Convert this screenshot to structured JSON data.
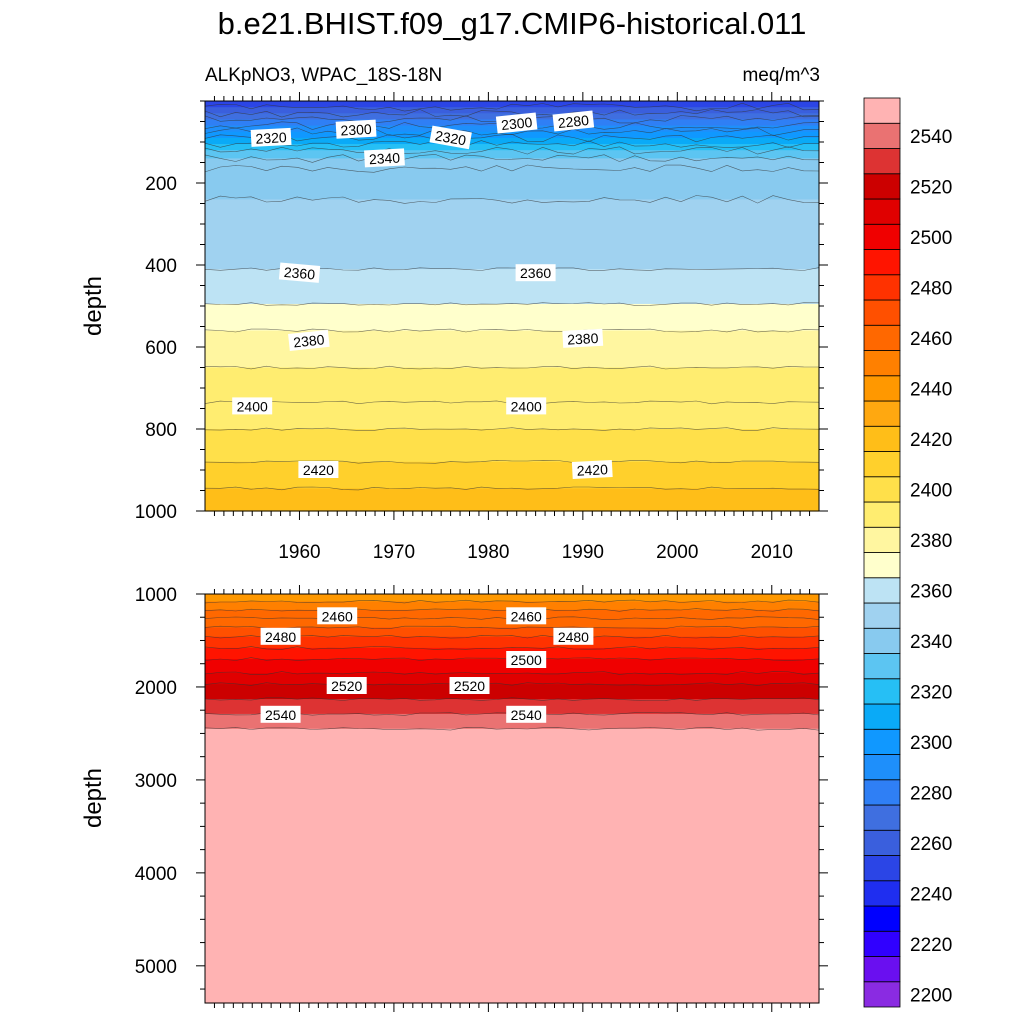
{
  "chart_data": {
    "type": "heatmap",
    "title": "b.e21.BHIST.f09_g17.CMIP6-historical.011",
    "subtitle_left": "ALKpNO3, WPAC_18S-18N",
    "subtitle_right": "meq/m^3",
    "ylabel": "depth",
    "xlim": [
      1950,
      2015
    ],
    "x_ticks": [
      "1960",
      "1970",
      "1980",
      "1990",
      "2000",
      "2010"
    ],
    "x_tick_values": [
      1960,
      1970,
      1980,
      1990,
      2000,
      2010
    ],
    "panels": [
      {
        "name": "upper",
        "ylim": [
          0,
          1000
        ],
        "y_ticks": [
          "200",
          "400",
          "600",
          "800",
          "1000"
        ],
        "y_tick_values": [
          200,
          400,
          600,
          800,
          1000
        ],
        "bands": [
          {
            "top": 0,
            "bottom": 15,
            "level": 2250
          },
          {
            "top": 15,
            "bottom": 30,
            "level": 2260
          },
          {
            "top": 30,
            "bottom": 45,
            "level": 2270
          },
          {
            "top": 45,
            "bottom": 60,
            "level": 2280
          },
          {
            "top": 60,
            "bottom": 75,
            "level": 2290
          },
          {
            "top": 75,
            "bottom": 90,
            "level": 2300
          },
          {
            "top": 90,
            "bottom": 105,
            "level": 2310
          },
          {
            "top": 105,
            "bottom": 120,
            "level": 2320
          },
          {
            "top": 120,
            "bottom": 140,
            "level": 2330
          },
          {
            "top": 140,
            "bottom": 165,
            "level": 2340
          },
          {
            "top": 165,
            "bottom": 240,
            "level": 2345
          },
          {
            "top": 240,
            "bottom": 410,
            "level": 2355
          },
          {
            "top": 410,
            "bottom": 495,
            "level": 2365
          },
          {
            "top": 495,
            "bottom": 560,
            "level": 2375
          },
          {
            "top": 560,
            "bottom": 650,
            "level": 2385
          },
          {
            "top": 650,
            "bottom": 735,
            "level": 2390
          },
          {
            "top": 735,
            "bottom": 800,
            "level": 2395
          },
          {
            "top": 800,
            "bottom": 880,
            "level": 2405
          },
          {
            "top": 880,
            "bottom": 945,
            "level": 2415
          },
          {
            "top": 945,
            "bottom": 1000,
            "level": 2425
          }
        ],
        "contour_labels": [
          {
            "text": "2320",
            "year": 1957,
            "depth": 90,
            "angle": -3
          },
          {
            "text": "2300",
            "year": 1966,
            "depth": 70,
            "angle": -3
          },
          {
            "text": "2340",
            "year": 1969,
            "depth": 140,
            "angle": -3
          },
          {
            "text": "2320",
            "year": 1976,
            "depth": 90,
            "angle": 10
          },
          {
            "text": "2300",
            "year": 1983,
            "depth": 55,
            "angle": -6
          },
          {
            "text": "2280",
            "year": 1989,
            "depth": 50,
            "angle": -6
          },
          {
            "text": "2360",
            "year": 1960,
            "depth": 420,
            "angle": 5
          },
          {
            "text": "2360",
            "year": 1985,
            "depth": 420,
            "angle": 0
          },
          {
            "text": "2380",
            "year": 1961,
            "depth": 585,
            "angle": -6
          },
          {
            "text": "2380",
            "year": 1990,
            "depth": 580,
            "angle": -3
          },
          {
            "text": "2400",
            "year": 1955,
            "depth": 745,
            "angle": 0
          },
          {
            "text": "2400",
            "year": 1984,
            "depth": 745,
            "angle": 0
          },
          {
            "text": "2420",
            "year": 1962,
            "depth": 900,
            "angle": 0
          },
          {
            "text": "2420",
            "year": 1991,
            "depth": 900,
            "angle": -3
          }
        ]
      },
      {
        "name": "lower",
        "ylim": [
          1000,
          5400
        ],
        "y_ticks": [
          "1000",
          "2000",
          "3000",
          "4000",
          "5000"
        ],
        "y_tick_values": [
          1000,
          2000,
          3000,
          4000,
          5000
        ],
        "bands": [
          {
            "top": 1000,
            "bottom": 1080,
            "level": 2445
          },
          {
            "top": 1080,
            "bottom": 1170,
            "level": 2455
          },
          {
            "top": 1170,
            "bottom": 1260,
            "level": 2460
          },
          {
            "top": 1260,
            "bottom": 1360,
            "level": 2465
          },
          {
            "top": 1360,
            "bottom": 1460,
            "level": 2475
          },
          {
            "top": 1460,
            "bottom": 1580,
            "level": 2485
          },
          {
            "top": 1580,
            "bottom": 1700,
            "level": 2495
          },
          {
            "top": 1700,
            "bottom": 1850,
            "level": 2505
          },
          {
            "top": 1850,
            "bottom": 1970,
            "level": 2515
          },
          {
            "top": 1970,
            "bottom": 2130,
            "level": 2525
          },
          {
            "top": 2130,
            "bottom": 2290,
            "level": 2535
          },
          {
            "top": 2290,
            "bottom": 2450,
            "level": 2545
          },
          {
            "top": 2450,
            "bottom": 5400,
            "level": 2555
          }
        ],
        "contour_labels": [
          {
            "text": "2460",
            "year": 1964,
            "depth": 1240,
            "angle": 0
          },
          {
            "text": "2460",
            "year": 1984,
            "depth": 1240,
            "angle": 0
          },
          {
            "text": "2480",
            "year": 1958,
            "depth": 1460,
            "angle": 0
          },
          {
            "text": "2480",
            "year": 1989,
            "depth": 1460,
            "angle": 0
          },
          {
            "text": "2500",
            "year": 1984,
            "depth": 1710,
            "angle": 0
          },
          {
            "text": "2520",
            "year": 1965,
            "depth": 1990,
            "angle": 0
          },
          {
            "text": "2520",
            "year": 1978,
            "depth": 1990,
            "angle": 0
          },
          {
            "text": "2540",
            "year": 1958,
            "depth": 2300,
            "angle": 0
          },
          {
            "text": "2540",
            "year": 1984,
            "depth": 2300,
            "angle": 0
          }
        ]
      }
    ],
    "colorbar": {
      "levels": [
        2200,
        2210,
        2220,
        2230,
        2240,
        2250,
        2260,
        2270,
        2280,
        2290,
        2300,
        2310,
        2320,
        2330,
        2340,
        2350,
        2360,
        2370,
        2380,
        2390,
        2400,
        2410,
        2420,
        2430,
        2440,
        2450,
        2460,
        2470,
        2480,
        2490,
        2500,
        2510,
        2520,
        2530,
        2540,
        2550
      ],
      "labels": [
        "2200",
        "2220",
        "2240",
        "2260",
        "2280",
        "2300",
        "2320",
        "2340",
        "2360",
        "2380",
        "2400",
        "2420",
        "2440",
        "2460",
        "2480",
        "2500",
        "2520",
        "2540"
      ],
      "colors": [
        "#8a2be2",
        "#6a0ff0",
        "#3000ff",
        "#0000ff",
        "#1f2ef0",
        "#2b45e6",
        "#3a5fdd",
        "#3f6fe0",
        "#2f7ff5",
        "#1e8ffb",
        "#1098ff",
        "#0aaaf7",
        "#26bff5",
        "#5cc5f2",
        "#88caef",
        "#a0d2f0",
        "#bde3f4",
        "#ffffcc",
        "#fff6a0",
        "#ffed70",
        "#ffe04a",
        "#ffd02c",
        "#ffbe18",
        "#ffa810",
        "#ff9800",
        "#ff8000",
        "#ff6800",
        "#ff5000",
        "#ff3200",
        "#ff1400",
        "#f00000",
        "#e00000",
        "#cc0000",
        "#dd3333",
        "#ea7272",
        "#ffb3b3"
      ]
    }
  }
}
